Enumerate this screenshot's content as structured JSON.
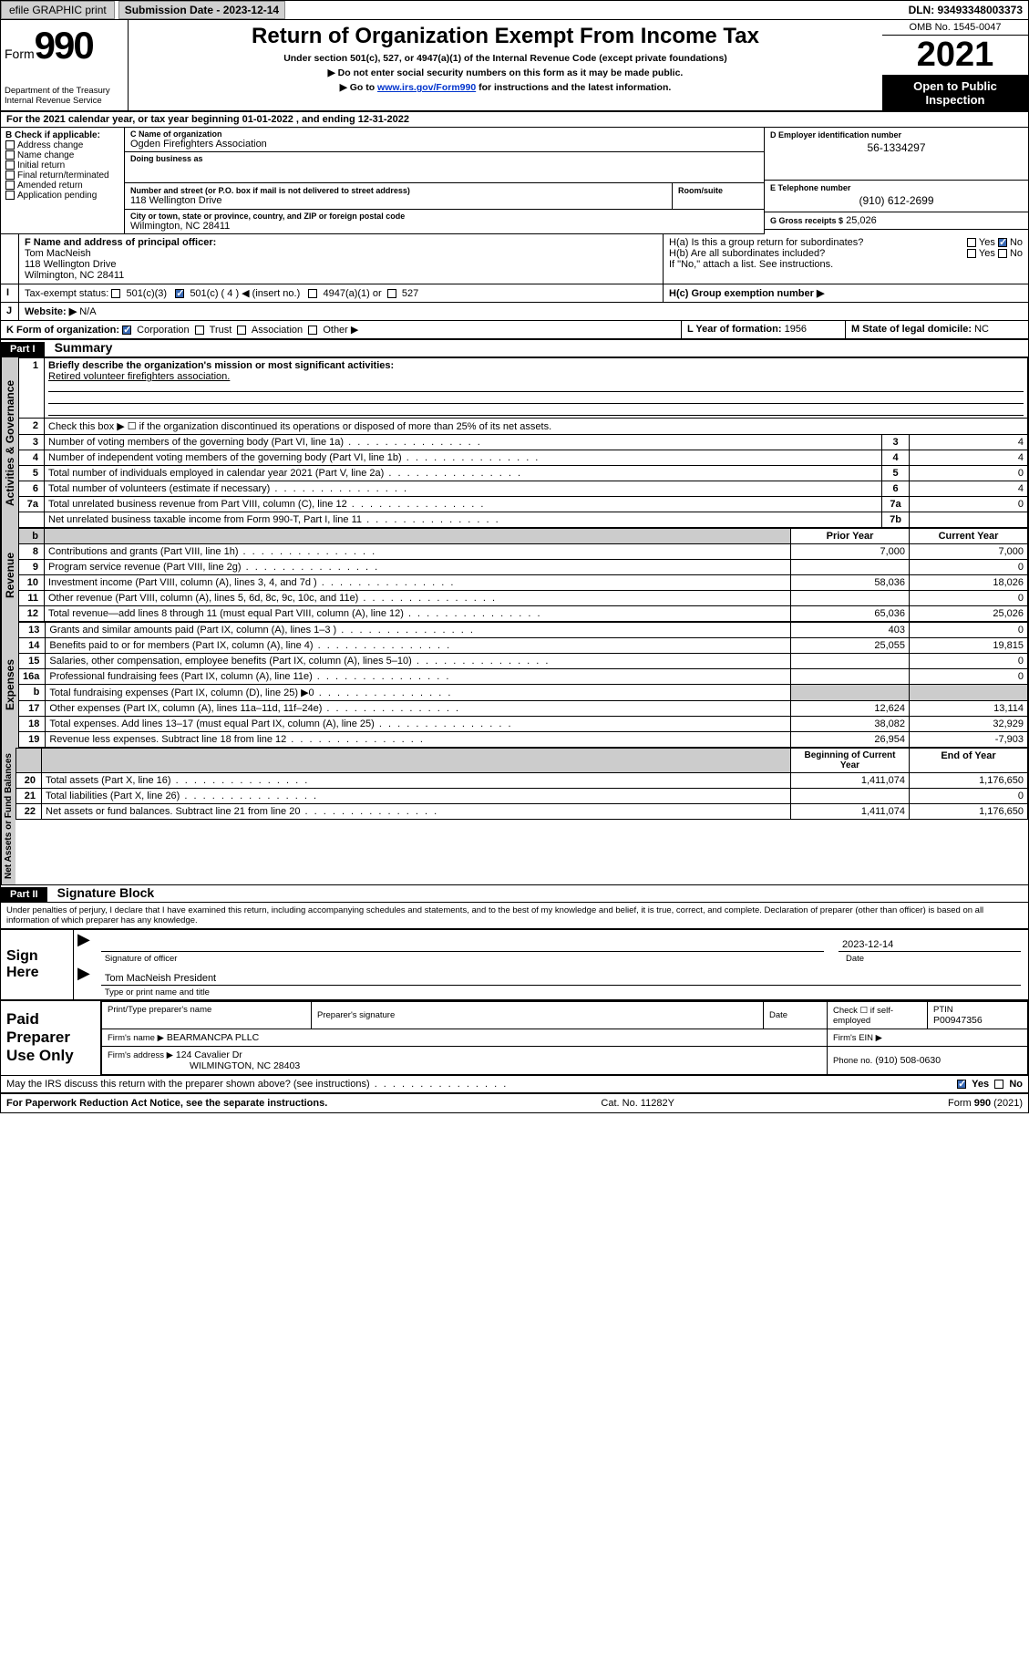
{
  "topbar": {
    "efile": "efile GRAPHIC print",
    "submission_label": "Submission Date - 2023-12-14",
    "dln": "DLN: 93493348003373"
  },
  "header": {
    "form_word": "Form",
    "form_num": "990",
    "dept": "Department of the Treasury",
    "irs": "Internal Revenue Service",
    "title": "Return of Organization Exempt From Income Tax",
    "sub1": "Under section 501(c), 527, or 4947(a)(1) of the Internal Revenue Code (except private foundations)",
    "sub2": "Do not enter social security numbers on this form as it may be made public.",
    "sub3_pre": "Go to ",
    "sub3_link": "www.irs.gov/Form990",
    "sub3_post": " for instructions and the latest information.",
    "omb": "OMB No. 1545-0047",
    "year": "2021",
    "inspect": "Open to Public Inspection"
  },
  "A": {
    "text": "For the 2021 calendar year, or tax year beginning 01-01-2022   , and ending 12-31-2022"
  },
  "B": {
    "label": "B Check if applicable:",
    "opts": [
      "Address change",
      "Name change",
      "Initial return",
      "Final return/terminated",
      "Amended return",
      "Application pending"
    ]
  },
  "C": {
    "name_label": "C Name of organization",
    "name": "Ogden Firefighters Association",
    "dba_label": "Doing business as",
    "street_label": "Number and street (or P.O. box if mail is not delivered to street address)",
    "room_label": "Room/suite",
    "street": "118 Wellington Drive",
    "city_label": "City or town, state or province, country, and ZIP or foreign postal code",
    "city": "Wilmington, NC  28411"
  },
  "D": {
    "label": "D Employer identification number",
    "val": "56-1334297"
  },
  "E": {
    "label": "E Telephone number",
    "val": "(910) 612-2699"
  },
  "G": {
    "label": "G Gross receipts $",
    "val": "25,026"
  },
  "F": {
    "label": "F  Name and address of principal officer:",
    "name": "Tom MacNeish",
    "street": "118 Wellington Drive",
    "city": "Wilmington, NC  28411"
  },
  "H": {
    "a": "H(a)  Is this a group return for subordinates?",
    "b": "H(b)  Are all subordinates included?",
    "b_note": "If \"No,\" attach a list. See instructions.",
    "c": "H(c)  Group exemption number ▶",
    "yes": "Yes",
    "no": "No"
  },
  "I": {
    "label": "Tax-exempt status:",
    "c3": "501(c)(3)",
    "c": "501(c) ( 4 ) ◀ (insert no.)",
    "a1": "4947(a)(1) or",
    "527": "527"
  },
  "J": {
    "label": "Website: ▶",
    "val": "N/A"
  },
  "K": {
    "label": "K Form of organization:",
    "corp": "Corporation",
    "trust": "Trust",
    "assoc": "Association",
    "other": "Other ▶"
  },
  "L": {
    "label": "L Year of formation:",
    "val": "1956"
  },
  "M": {
    "label": "M State of legal domicile:",
    "val": "NC"
  },
  "partI": {
    "hdr": "Part I",
    "title": "Summary"
  },
  "summary": {
    "l1_label": "Briefly describe the organization's mission or most significant activities:",
    "l1_val": "Retired volunteer firefighters association.",
    "l2": "Check this box ▶ ☐  if the organization discontinued its operations or disposed of more than 25% of its net assets.",
    "rows_gov": [
      {
        "n": "3",
        "d": "Number of voting members of the governing body (Part VI, line 1a)",
        "b": "3",
        "v": "4"
      },
      {
        "n": "4",
        "d": "Number of independent voting members of the governing body (Part VI, line 1b)",
        "b": "4",
        "v": "4"
      },
      {
        "n": "5",
        "d": "Total number of individuals employed in calendar year 2021 (Part V, line 2a)",
        "b": "5",
        "v": "0"
      },
      {
        "n": "6",
        "d": "Total number of volunteers (estimate if necessary)",
        "b": "6",
        "v": "4"
      },
      {
        "n": "7a",
        "d": "Total unrelated business revenue from Part VIII, column (C), line 12",
        "b": "7a",
        "v": "0"
      },
      {
        "n": "",
        "d": "Net unrelated business taxable income from Form 990-T, Part I, line 11",
        "b": "7b",
        "v": ""
      }
    ],
    "col_prior": "Prior Year",
    "col_current": "Current Year",
    "rows_rev": [
      {
        "n": "8",
        "d": "Contributions and grants (Part VIII, line 1h)",
        "p": "7,000",
        "c": "7,000"
      },
      {
        "n": "9",
        "d": "Program service revenue (Part VIII, line 2g)",
        "p": "",
        "c": "0"
      },
      {
        "n": "10",
        "d": "Investment income (Part VIII, column (A), lines 3, 4, and 7d )",
        "p": "58,036",
        "c": "18,026"
      },
      {
        "n": "11",
        "d": "Other revenue (Part VIII, column (A), lines 5, 6d, 8c, 9c, 10c, and 11e)",
        "p": "",
        "c": "0"
      },
      {
        "n": "12",
        "d": "Total revenue—add lines 8 through 11 (must equal Part VIII, column (A), line 12)",
        "p": "65,036",
        "c": "25,026"
      }
    ],
    "rows_exp": [
      {
        "n": "13",
        "d": "Grants and similar amounts paid (Part IX, column (A), lines 1–3 )",
        "p": "403",
        "c": "0"
      },
      {
        "n": "14",
        "d": "Benefits paid to or for members (Part IX, column (A), line 4)",
        "p": "25,055",
        "c": "19,815"
      },
      {
        "n": "15",
        "d": "Salaries, other compensation, employee benefits (Part IX, column (A), lines 5–10)",
        "p": "",
        "c": "0"
      },
      {
        "n": "16a",
        "d": "Professional fundraising fees (Part IX, column (A), line 11e)",
        "p": "",
        "c": "0"
      },
      {
        "n": "b",
        "d": "Total fundraising expenses (Part IX, column (D), line 25) ▶0",
        "p": "SHADE",
        "c": "SHADE"
      },
      {
        "n": "17",
        "d": "Other expenses (Part IX, column (A), lines 11a–11d, 11f–24e)",
        "p": "12,624",
        "c": "13,114"
      },
      {
        "n": "18",
        "d": "Total expenses. Add lines 13–17 (must equal Part IX, column (A), line 25)",
        "p": "38,082",
        "c": "32,929"
      },
      {
        "n": "19",
        "d": "Revenue less expenses. Subtract line 18 from line 12",
        "p": "26,954",
        "c": "-7,903"
      }
    ],
    "col_begin": "Beginning of Current Year",
    "col_end": "End of Year",
    "rows_net": [
      {
        "n": "20",
        "d": "Total assets (Part X, line 16)",
        "p": "1,411,074",
        "c": "1,176,650"
      },
      {
        "n": "21",
        "d": "Total liabilities (Part X, line 26)",
        "p": "",
        "c": "0"
      },
      {
        "n": "22",
        "d": "Net assets or fund balances. Subtract line 21 from line 20",
        "p": "1,411,074",
        "c": "1,176,650"
      }
    ]
  },
  "tabs": {
    "gov": "Activities & Governance",
    "rev": "Revenue",
    "exp": "Expenses",
    "net": "Net Assets or Fund Balances"
  },
  "partII": {
    "hdr": "Part II",
    "title": "Signature Block"
  },
  "sig": {
    "penalty": "Under penalties of perjury, I declare that I have examined this return, including accompanying schedules and statements, and to the best of my knowledge and belief, it is true, correct, and complete. Declaration of preparer (other than officer) is based on all information of which preparer has any knowledge.",
    "sign_here": "Sign Here",
    "officer_sig": "Signature of officer",
    "date_label": "Date",
    "date_val": "2023-12-14",
    "officer_name": "Tom MacNeish  President",
    "type_name": "Type or print name and title"
  },
  "paid": {
    "label": "Paid Preparer Use Only",
    "col_name": "Print/Type preparer's name",
    "col_sig": "Preparer's signature",
    "col_date": "Date",
    "col_check": "Check ☐ if self-employed",
    "col_ptin": "PTIN",
    "ptin_val": "P00947356",
    "firm_name_label": "Firm's name    ▶",
    "firm_name": "BEARMANCPA PLLC",
    "firm_ein_label": "Firm's EIN ▶",
    "firm_addr_label": "Firm's address ▶",
    "firm_addr1": "124 Cavalier Dr",
    "firm_addr2": "WILMINGTON, NC  28403",
    "phone_label": "Phone no.",
    "phone_val": "(910) 508-0630"
  },
  "discuss": {
    "q": "May the IRS discuss this return with the preparer shown above? (see instructions)",
    "yes": "Yes",
    "no": "No"
  },
  "footer": {
    "left": "For Paperwork Reduction Act Notice, see the separate instructions.",
    "mid": "Cat. No. 11282Y",
    "right": "Form 990 (2021)"
  }
}
